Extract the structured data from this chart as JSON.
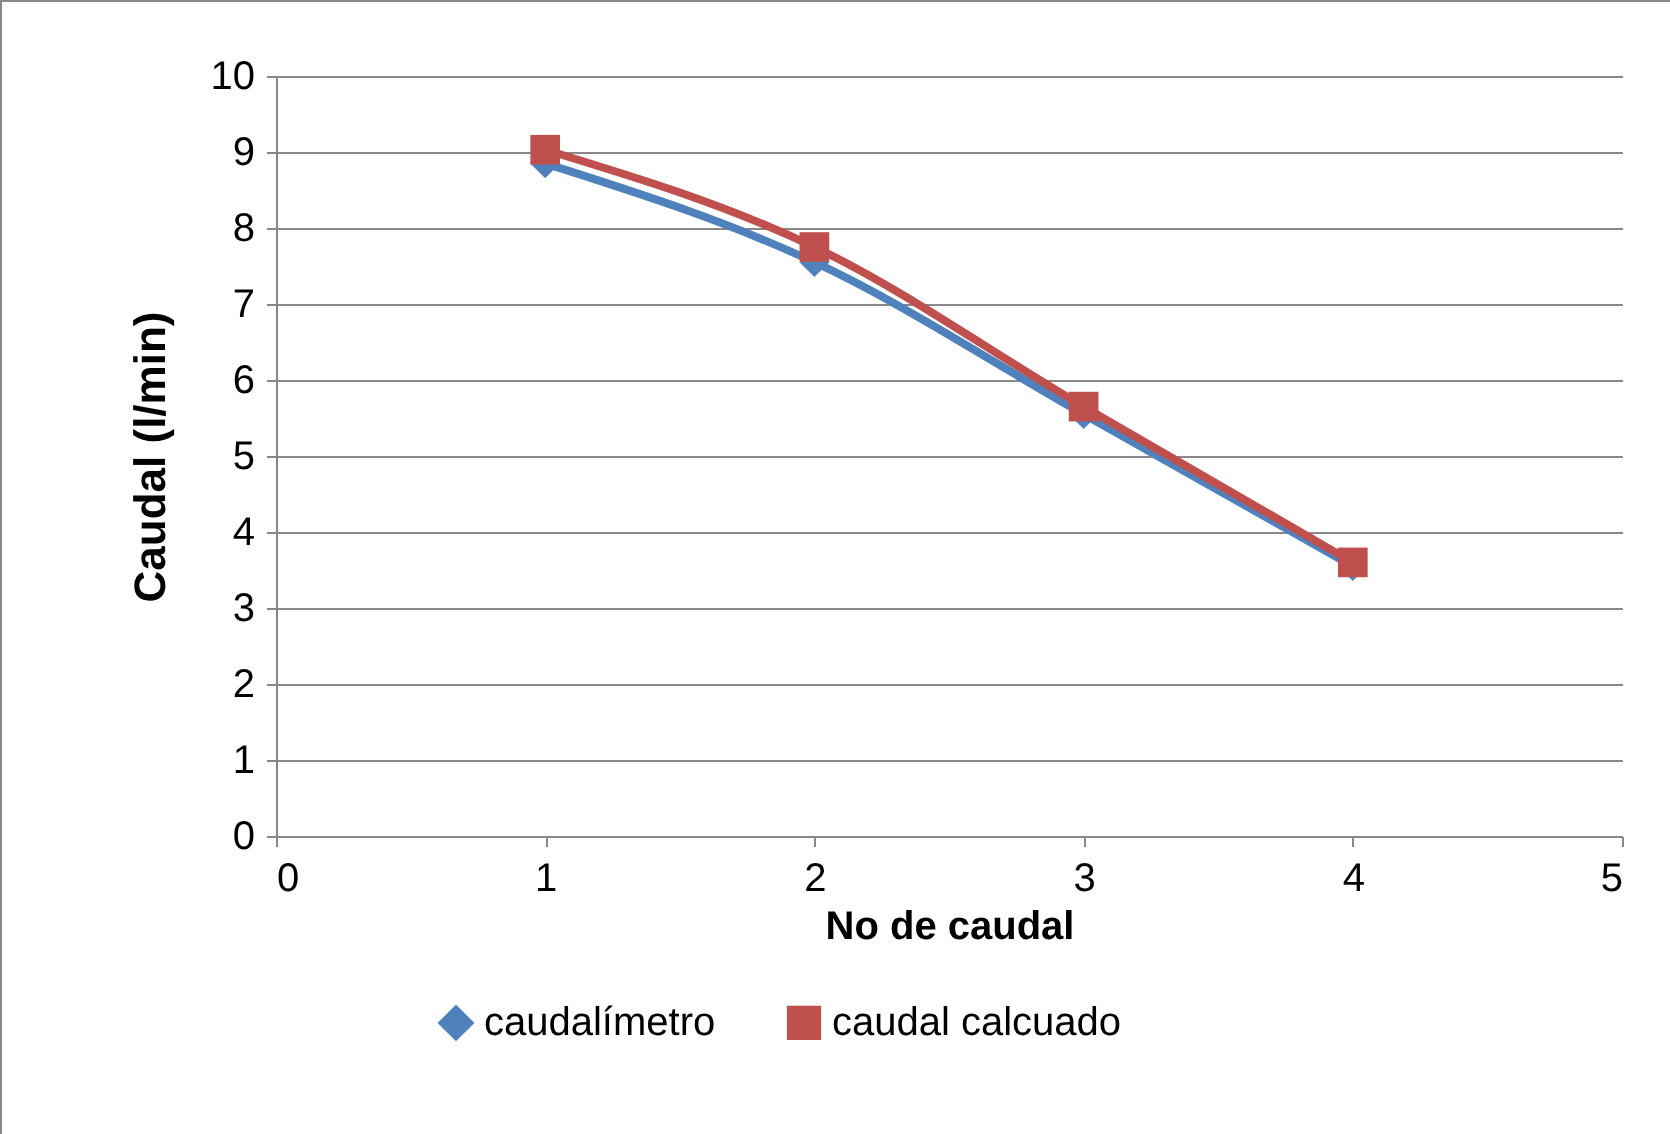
{
  "chart_data": {
    "type": "line",
    "xlabel": "No de caudal",
    "ylabel": "Caudal (l/min)",
    "x": [
      1,
      2,
      3,
      4
    ],
    "series": [
      {
        "name": "caudalímetro",
        "color": "#4f81bd",
        "marker": "diamond",
        "values": [
          8.85,
          7.55,
          5.55,
          3.55
        ]
      },
      {
        "name": "caudal calcuado",
        "color": "#c0504d",
        "marker": "square",
        "values": [
          9.03,
          7.75,
          5.65,
          3.6
        ]
      }
    ],
    "xlim": [
      0,
      5
    ],
    "xticks": [
      0,
      1,
      2,
      3,
      4,
      5
    ],
    "ylim": [
      0,
      10
    ],
    "yticks": [
      0,
      1,
      2,
      3,
      4,
      5,
      6,
      7,
      8,
      9,
      10
    ],
    "grid": "y",
    "legend": "bottom",
    "line_style": "solid"
  }
}
